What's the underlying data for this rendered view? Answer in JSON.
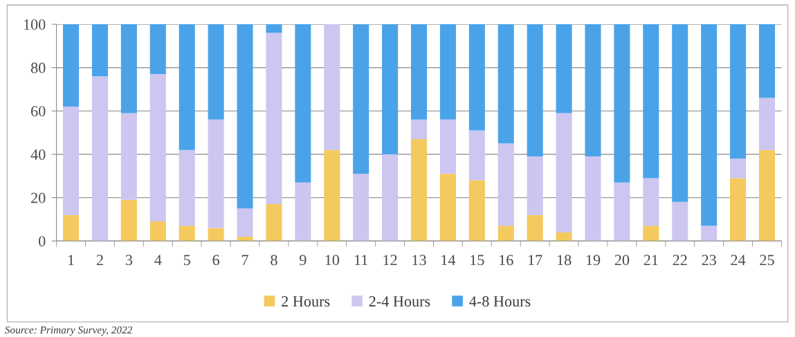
{
  "chart_data": {
    "type": "bar",
    "stacked": true,
    "categories": [
      "1",
      "2",
      "3",
      "4",
      "5",
      "6",
      "7",
      "8",
      "9",
      "10",
      "11",
      "12",
      "13",
      "14",
      "15",
      "16",
      "17",
      "18",
      "19",
      "20",
      "21",
      "22",
      "23",
      "24",
      "25"
    ],
    "series": [
      {
        "name": "2 Hours",
        "color": "#f4c95d",
        "values": [
          12,
          0,
          19,
          9,
          7,
          6,
          2,
          17,
          0,
          42,
          0,
          0,
          47,
          31,
          28,
          7,
          12,
          4,
          0,
          0,
          7,
          0,
          0,
          29,
          42
        ]
      },
      {
        "name": "2-4 Hours",
        "color": "#cdc6f0",
        "values": [
          50,
          76,
          40,
          68,
          35,
          50,
          13,
          79,
          27,
          58,
          31,
          40,
          9,
          25,
          23,
          38,
          27,
          55,
          39,
          27,
          22,
          18,
          7,
          9,
          24
        ]
      },
      {
        "name": "4-8 Hours",
        "color": "#4aa3e8",
        "values": [
          38,
          24,
          41,
          23,
          58,
          44,
          85,
          4,
          73,
          0,
          69,
          60,
          44,
          44,
          49,
          55,
          61,
          41,
          61,
          73,
          71,
          82,
          93,
          62,
          34
        ]
      }
    ],
    "ylim": [
      0,
      100
    ],
    "yticks": [
      0,
      20,
      40,
      60,
      80,
      100
    ],
    "grid": "y",
    "legend": "bottom",
    "annotations": [
      "Source: Primary Survey, 2022"
    ]
  }
}
